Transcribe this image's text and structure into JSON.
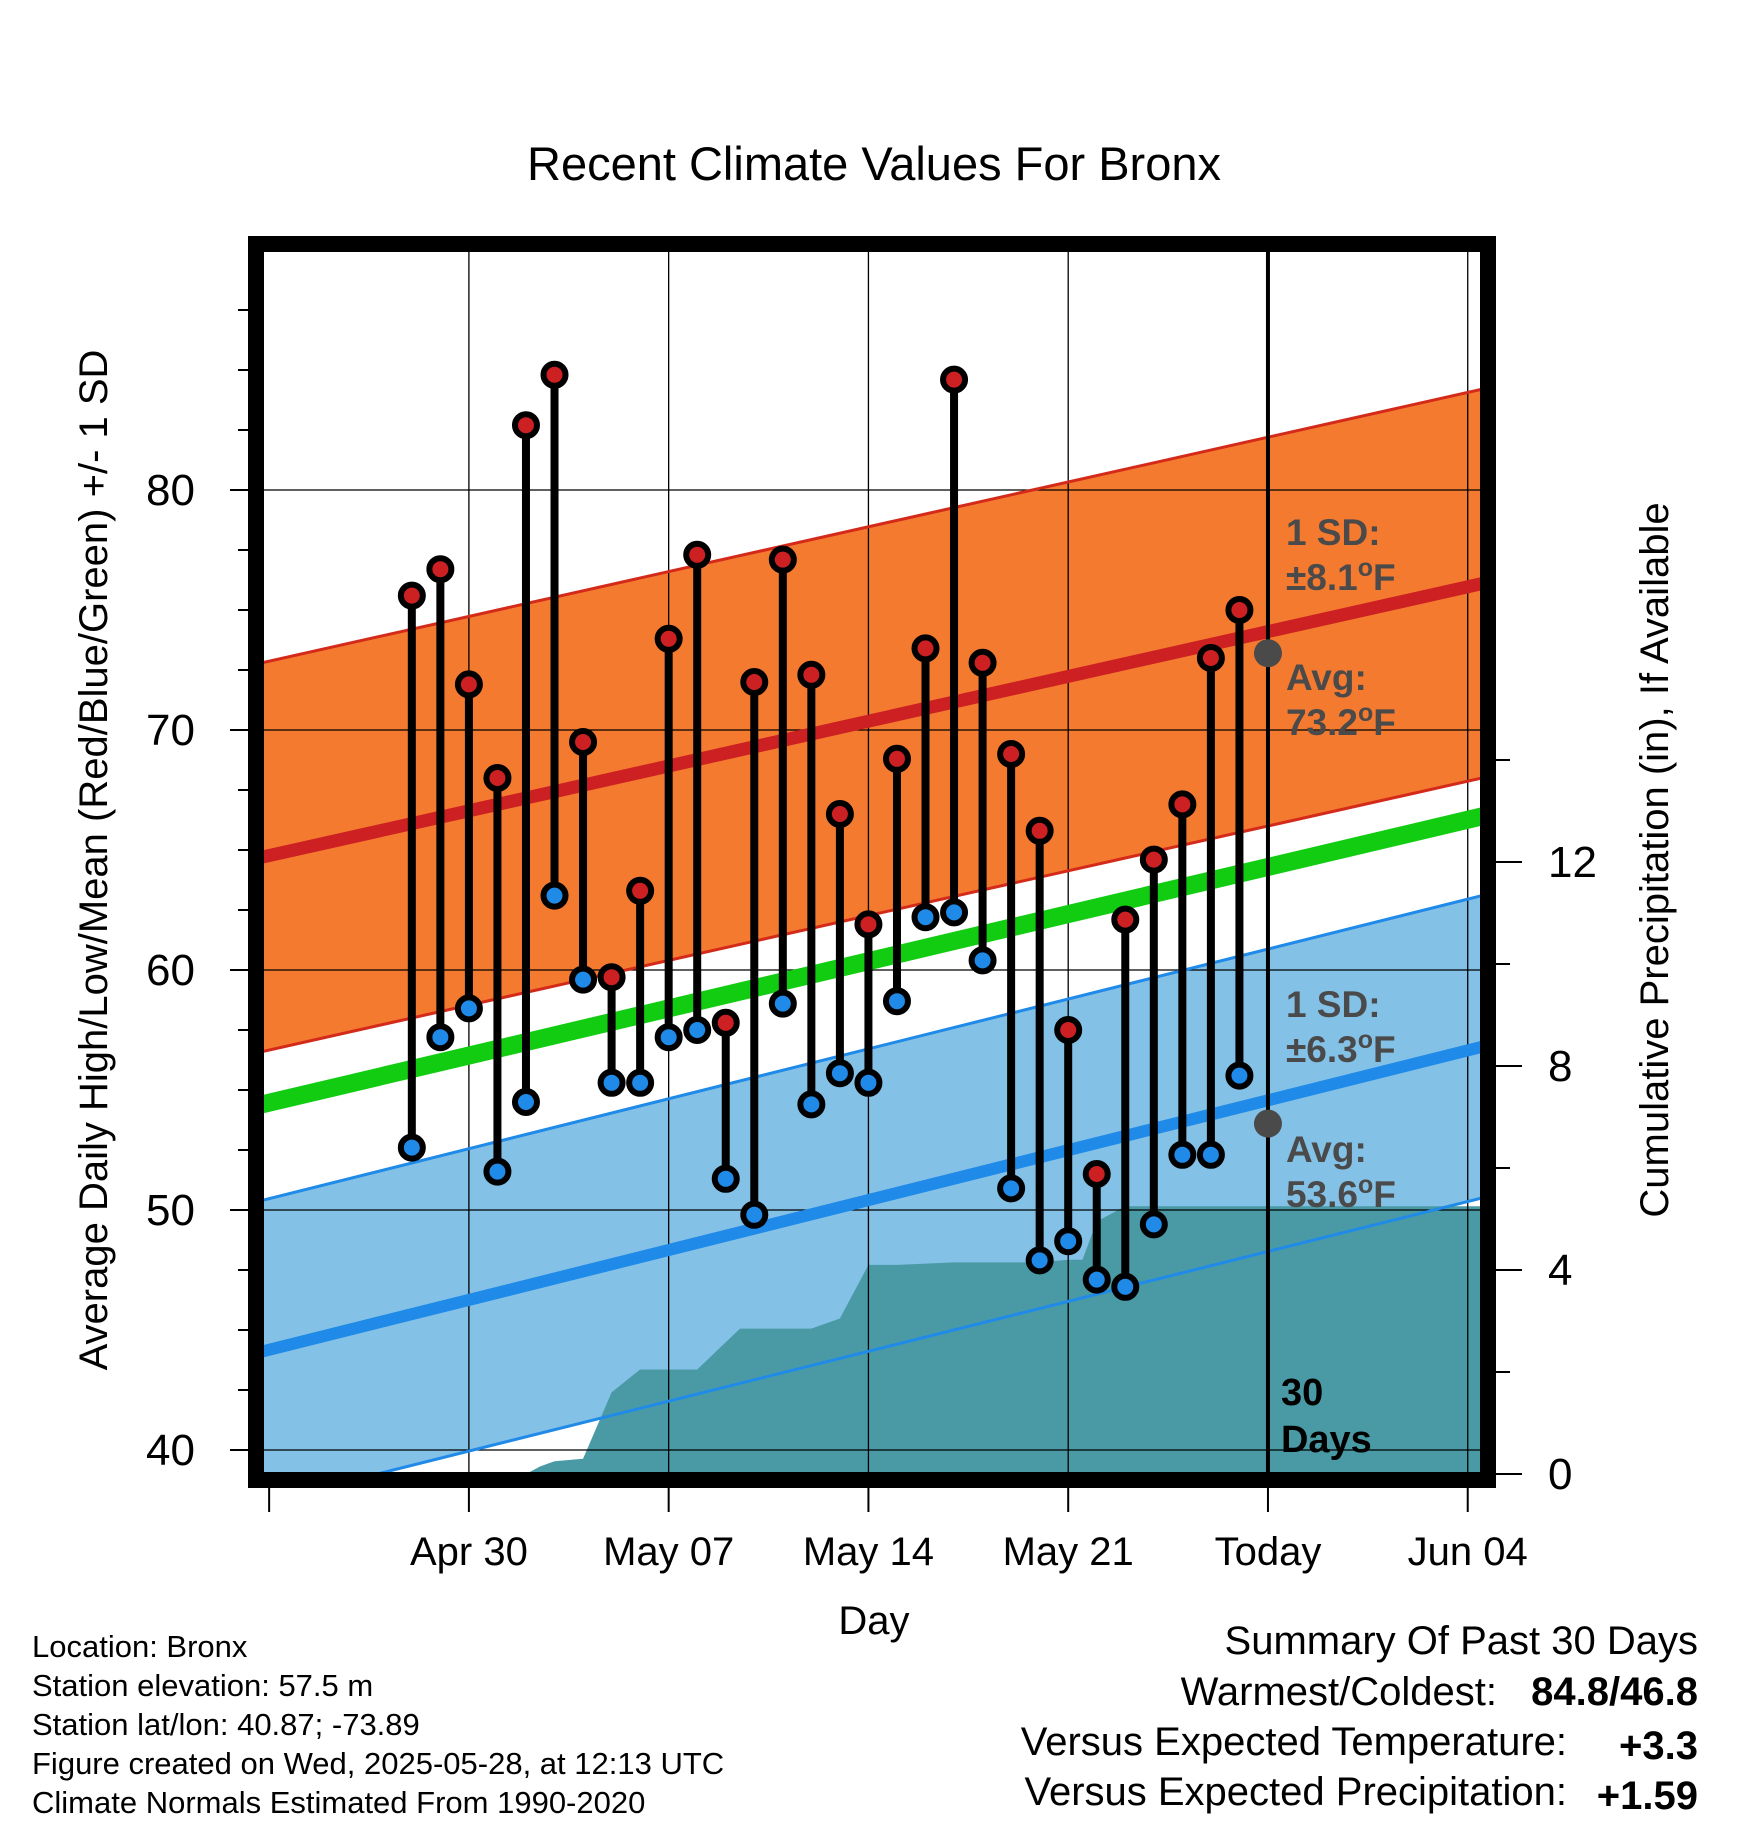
{
  "chart_data": {
    "type": "line",
    "title": "Recent Climate Values For Bronx",
    "xlabel": "Day",
    "ylabel": "Average Daily High/Low/Mean (Red/Blue/Green) +/- 1 SD",
    "y2label": "Cumulative Precipitation (in), If Available",
    "ylim": [
      39,
      90
    ],
    "y2lim": [
      0,
      24
    ],
    "xlim": [
      -35.25,
      7.5
    ],
    "grid": true,
    "x_ticks": [
      {
        "x": -28,
        "label": "Apr 30"
      },
      {
        "x": -21,
        "label": "May 07"
      },
      {
        "x": -14,
        "label": "May 14"
      },
      {
        "x": -7,
        "label": "May 21"
      },
      {
        "x": 0,
        "label": "Today"
      },
      {
        "x": 7,
        "label": "Jun 04"
      }
    ],
    "y_ticks": [
      40,
      50,
      60,
      70,
      80
    ],
    "y2_ticks": [
      0,
      4,
      8,
      12
    ],
    "today_line": {
      "x": 0,
      "label_line1": "30",
      "label_line2": "Days"
    },
    "daily": {
      "x": [
        -30,
        -29,
        -28,
        -27,
        -26,
        -25,
        -24,
        -23,
        -22,
        -21,
        -20,
        -19,
        -18,
        -17,
        -16,
        -15,
        -14,
        -13,
        -12,
        -11,
        -10,
        -9,
        -8,
        -7,
        -6,
        -5,
        -4,
        -3,
        -2,
        -1
      ],
      "highs": [
        75.6,
        76.7,
        71.9,
        68.0,
        82.7,
        84.8,
        69.5,
        59.7,
        63.3,
        73.8,
        77.3,
        57.8,
        72.0,
        77.1,
        72.3,
        66.5,
        61.9,
        68.8,
        73.4,
        84.6,
        72.8,
        69.0,
        65.8,
        57.5,
        51.5,
        62.1,
        64.6,
        66.9,
        73.0,
        75.0
      ],
      "lows": [
        52.6,
        57.2,
        58.4,
        51.6,
        54.5,
        63.1,
        59.6,
        55.3,
        55.3,
        57.2,
        57.5,
        51.3,
        49.8,
        58.6,
        54.4,
        55.7,
        55.3,
        58.7,
        62.2,
        62.4,
        60.4,
        50.9,
        47.9,
        48.7,
        47.1,
        46.8,
        49.4,
        52.3,
        52.3,
        55.6
      ]
    },
    "normals": {
      "high": {
        "start": 64.7,
        "end": 76.1,
        "sd": 8.1
      },
      "low": {
        "start": 44.1,
        "end": 56.8,
        "sd": 6.3
      },
      "mean": {
        "start": 54.4,
        "end": 66.4
      }
    },
    "precip_cumulative": {
      "x": [
        -35,
        -30.5,
        -29,
        -27,
        -26,
        -25.5,
        -25,
        -24,
        -23,
        -22,
        -20,
        -18.5,
        -16.5,
        -16,
        -15,
        -14,
        -13,
        -11,
        -10,
        -9,
        -8,
        -7,
        -6.5,
        -6,
        -5,
        -4,
        0,
        5,
        7.5
      ],
      "y": [
        0,
        0,
        0,
        0,
        0,
        0.15,
        0.25,
        0.3,
        1.6,
        2.05,
        2.05,
        2.85,
        2.85,
        2.85,
        3.05,
        4.1,
        4.1,
        4.15,
        4.15,
        4.15,
        4.15,
        4.2,
        4.2,
        4.95,
        5.25,
        5.25,
        5.25,
        5.25,
        5.25
      ]
    },
    "annotations": {
      "high_sd": "1 SD:",
      "high_sd_value": "±8.1",
      "high_avg": "Avg:",
      "high_avg_value": "73.2",
      "low_sd": "1 SD:",
      "low_sd_value": "±6.3",
      "low_avg": "Avg:",
      "low_avg_value": "53.6",
      "degree": "o",
      "unit": "F"
    },
    "colors": {
      "high_band": "#f47a30",
      "high_band_edge": "#d42a1a",
      "high_line": "#cd2022",
      "low_band": "#83c1e6",
      "low_band_edge": "#1f8ae8",
      "low_line": "#1f8ae8",
      "mean_line": "#11cc11",
      "precip_fill": "#4a9aa6",
      "high_marker": "#cd2022",
      "low_marker": "#1f8ae8",
      "annotation": "#4a4a4a",
      "warm": "#d42a2a",
      "wet": "#11bb11"
    }
  },
  "info": {
    "location": "Location: Bronx",
    "elevation": "Station elevation: 57.5 m",
    "latlon": "Station lat/lon: 40.87; -73.89",
    "created": "Figure created on Wed, 2025-05-28, at 12:13 UTC",
    "normals": "Climate Normals Estimated From 1990-2020"
  },
  "summary": {
    "title": "Summary Of Past 30 Days",
    "warmest_label": "Warmest/Coldest:",
    "warmest_value": "84.8",
    "slash": "/",
    "coldest_value": "46.8",
    "temp_label": "Versus Expected Temperature:",
    "temp_value": "+3.3",
    "precip_label": "Versus Expected Precipitation:",
    "precip_value": "+1.59"
  }
}
